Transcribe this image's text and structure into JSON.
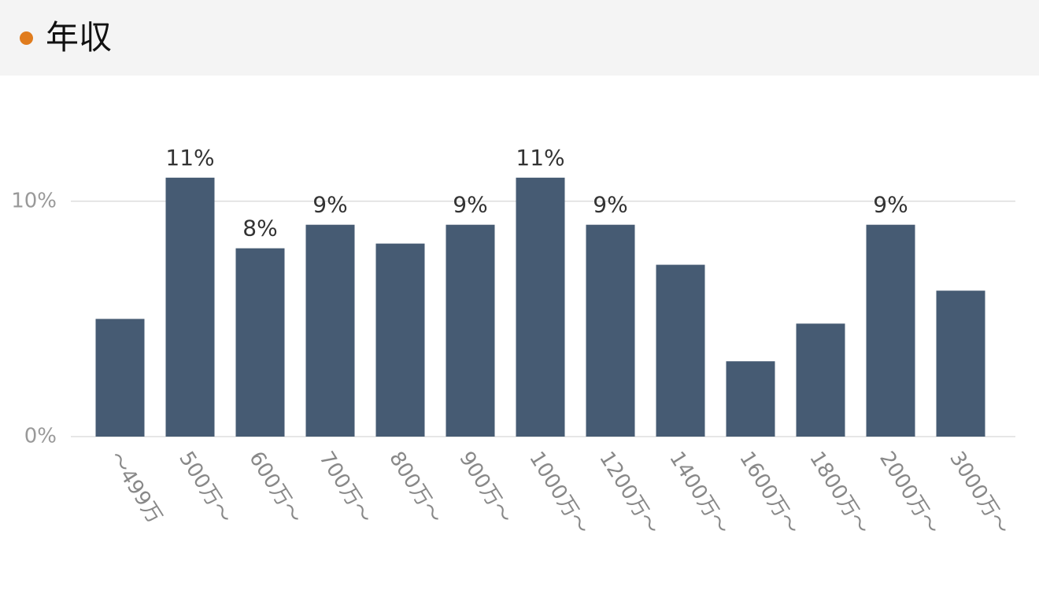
{
  "chart_data": {
    "type": "bar",
    "title": "年収",
    "categories": [
      "〜499万",
      "500万〜",
      "600万〜",
      "700万〜",
      "800万〜",
      "900万〜",
      "1000万〜",
      "1200万〜",
      "1400万〜",
      "1600万〜",
      "1800万〜",
      "2000万〜",
      "3000万〜"
    ],
    "values": [
      5,
      11,
      8,
      9,
      8.2,
      9,
      11,
      9,
      7.3,
      3.2,
      4.8,
      9,
      6.2
    ],
    "value_labels": [
      null,
      "11%",
      "8%",
      "9%",
      null,
      "9%",
      "11%",
      "9%",
      null,
      null,
      null,
      "9%",
      null
    ],
    "color": "#465b73",
    "ylim": [
      0,
      13
    ],
    "yticks": [
      {
        "value": 0,
        "label": "0%"
      },
      {
        "value": 10,
        "label": "10%"
      }
    ],
    "grid": true
  }
}
